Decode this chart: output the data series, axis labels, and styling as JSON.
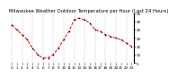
{
  "title": "Milwaukee Weather Outdoor Temperature per Hour (Last 24 Hours)",
  "hours": [
    0,
    1,
    2,
    3,
    4,
    5,
    6,
    7,
    8,
    9,
    10,
    11,
    12,
    13,
    14,
    15,
    16,
    17,
    18,
    19,
    20,
    21,
    22,
    23
  ],
  "temps": [
    28,
    25,
    22,
    19,
    14,
    10,
    8,
    8,
    10,
    14,
    19,
    24,
    31,
    32,
    31,
    29,
    25,
    24,
    22,
    21,
    20,
    19,
    17,
    15
  ],
  "line_color": "#ff0000",
  "marker_color": "#000000",
  "bg_color": "#ffffff",
  "grid_color": "#808080",
  "ylim_min": 5,
  "ylim_max": 35,
  "yticks": [
    5,
    10,
    15,
    20,
    25,
    30,
    35
  ],
  "title_fontsize": 3.8,
  "tick_fontsize": 3.0,
  "linewidth": 0.7,
  "markersize": 1.8
}
